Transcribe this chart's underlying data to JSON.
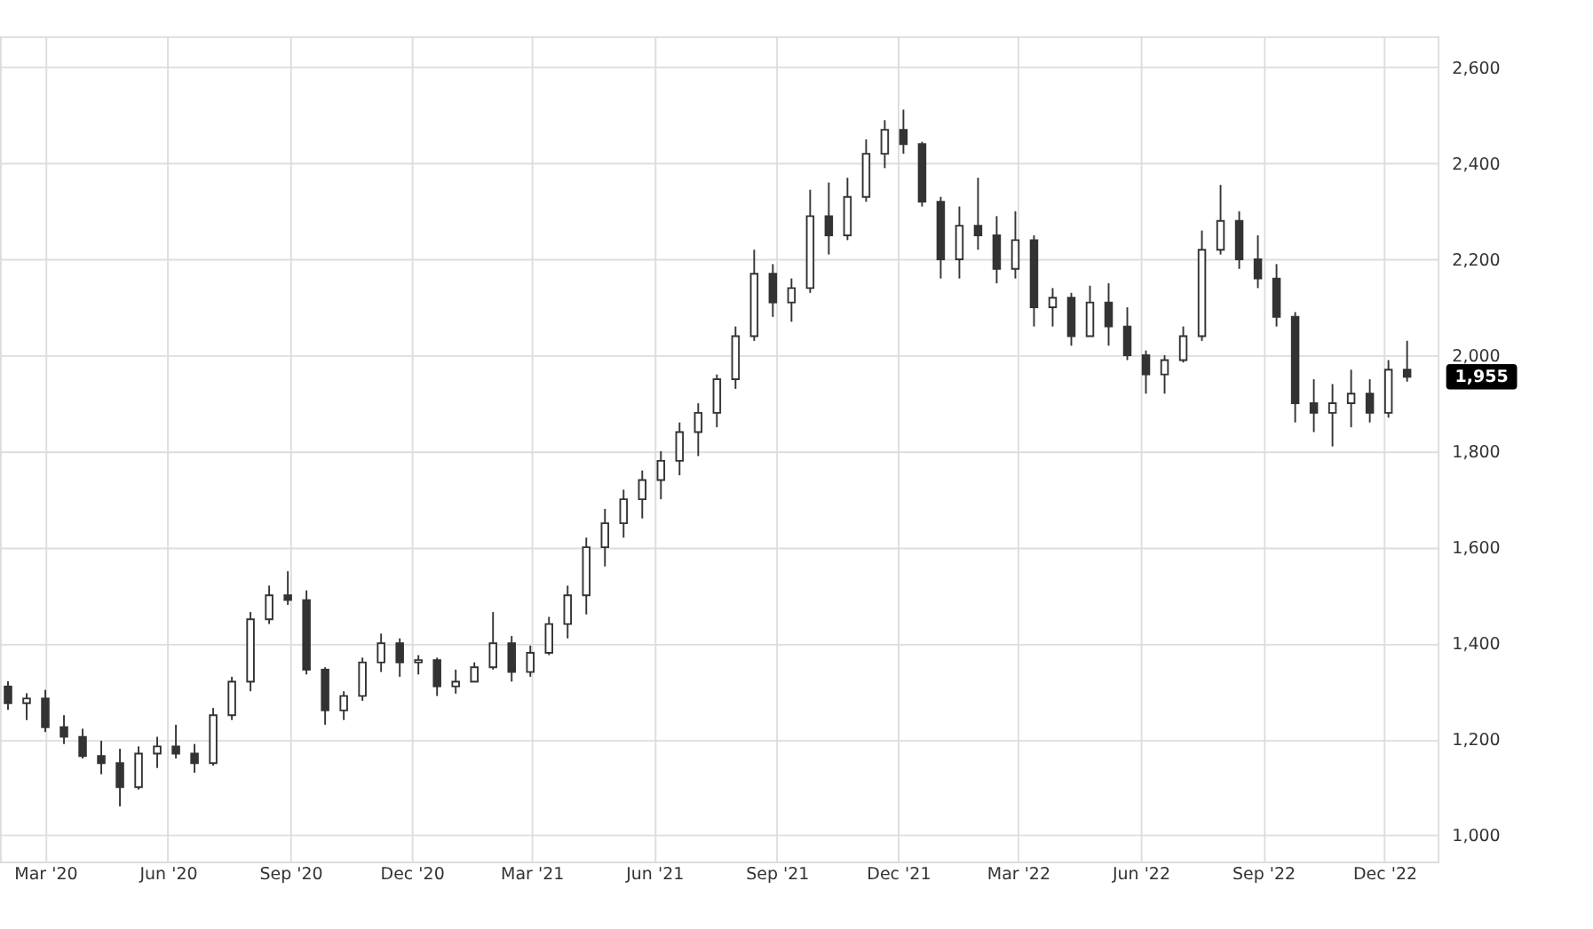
{
  "chart_data": {
    "type": "candlestick",
    "color": "#333333",
    "grid": true,
    "x": [
      "2020-02-02",
      "2020-02-16",
      "2020-03-01",
      "2020-03-15",
      "2020-03-29",
      "2020-04-12",
      "2020-04-26",
      "2020-05-10",
      "2020-05-24",
      "2020-06-07",
      "2020-06-21",
      "2020-07-05",
      "2020-07-19",
      "2020-08-02",
      "2020-08-16",
      "2020-08-30",
      "2020-09-13",
      "2020-09-27",
      "2020-10-11",
      "2020-10-25",
      "2020-11-08",
      "2020-11-22",
      "2020-12-06",
      "2020-12-20",
      "2021-01-03",
      "2021-01-17",
      "2021-01-31",
      "2021-02-14",
      "2021-02-28",
      "2021-03-14",
      "2021-03-28",
      "2021-04-11",
      "2021-04-25",
      "2021-05-09",
      "2021-05-23",
      "2021-06-06",
      "2021-06-20",
      "2021-07-04",
      "2021-07-18",
      "2021-08-01",
      "2021-08-15",
      "2021-08-29",
      "2021-09-12",
      "2021-09-26",
      "2021-10-10",
      "2021-10-24",
      "2021-11-07",
      "2021-11-21",
      "2021-12-05",
      "2021-12-19",
      "2022-01-02",
      "2022-01-16",
      "2022-01-30",
      "2022-02-13",
      "2022-02-27",
      "2022-03-13",
      "2022-03-27",
      "2022-04-10",
      "2022-04-24",
      "2022-05-08",
      "2022-05-22",
      "2022-06-05",
      "2022-06-19",
      "2022-07-03",
      "2022-07-17",
      "2022-07-31",
      "2022-08-14",
      "2022-08-28",
      "2022-09-11",
      "2022-09-25",
      "2022-10-09",
      "2022-10-23",
      "2022-11-06",
      "2022-11-20",
      "2022-12-04",
      "2022-12-18"
    ],
    "ohlc": [
      [
        1310,
        1321,
        1261,
        1275
      ],
      [
        1275,
        1296,
        1240,
        1285
      ],
      [
        1285,
        1303,
        1215,
        1225
      ],
      [
        1225,
        1250,
        1190,
        1205
      ],
      [
        1205,
        1222,
        1160,
        1165
      ],
      [
        1165,
        1197,
        1127,
        1150
      ],
      [
        1150,
        1180,
        1060,
        1100
      ],
      [
        1100,
        1185,
        1095,
        1170
      ],
      [
        1170,
        1205,
        1140,
        1185
      ],
      [
        1185,
        1230,
        1160,
        1170
      ],
      [
        1170,
        1190,
        1130,
        1150
      ],
      [
        1150,
        1265,
        1145,
        1250
      ],
      [
        1250,
        1330,
        1240,
        1320
      ],
      [
        1320,
        1465,
        1300,
        1450
      ],
      [
        1450,
        1520,
        1440,
        1500
      ],
      [
        1500,
        1550,
        1480,
        1490
      ],
      [
        1490,
        1510,
        1335,
        1345
      ],
      [
        1345,
        1350,
        1230,
        1260
      ],
      [
        1260,
        1300,
        1240,
        1290
      ],
      [
        1290,
        1370,
        1280,
        1360
      ],
      [
        1360,
        1420,
        1340,
        1400
      ],
      [
        1400,
        1410,
        1330,
        1360
      ],
      [
        1360,
        1375,
        1335,
        1365
      ],
      [
        1365,
        1370,
        1290,
        1310
      ],
      [
        1310,
        1345,
        1295,
        1320
      ],
      [
        1320,
        1360,
        1320,
        1350
      ],
      [
        1350,
        1465,
        1345,
        1400
      ],
      [
        1400,
        1415,
        1320,
        1340
      ],
      [
        1340,
        1395,
        1330,
        1380
      ],
      [
        1380,
        1455,
        1375,
        1440
      ],
      [
        1440,
        1520,
        1410,
        1500
      ],
      [
        1500,
        1620,
        1460,
        1600
      ],
      [
        1600,
        1680,
        1560,
        1650
      ],
      [
        1650,
        1720,
        1620,
        1700
      ],
      [
        1700,
        1760,
        1660,
        1740
      ],
      [
        1740,
        1800,
        1700,
        1780
      ],
      [
        1780,
        1860,
        1750,
        1840
      ],
      [
        1840,
        1900,
        1790,
        1880
      ],
      [
        1880,
        1960,
        1850,
        1950
      ],
      [
        1950,
        2060,
        1930,
        2040
      ],
      [
        2040,
        2220,
        2030,
        2170
      ],
      [
        2170,
        2190,
        2080,
        2110
      ],
      [
        2110,
        2160,
        2070,
        2140
      ],
      [
        2140,
        2345,
        2130,
        2290
      ],
      [
        2290,
        2360,
        2210,
        2250
      ],
      [
        2250,
        2370,
        2240,
        2330
      ],
      [
        2330,
        2450,
        2320,
        2420
      ],
      [
        2420,
        2490,
        2390,
        2470
      ],
      [
        2470,
        2512,
        2420,
        2440
      ],
      [
        2440,
        2445,
        2310,
        2320
      ],
      [
        2320,
        2330,
        2160,
        2200
      ],
      [
        2200,
        2310,
        2160,
        2270
      ],
      [
        2270,
        2370,
        2220,
        2250
      ],
      [
        2250,
        2290,
        2150,
        2180
      ],
      [
        2180,
        2300,
        2160,
        2240
      ],
      [
        2240,
        2250,
        2060,
        2100
      ],
      [
        2100,
        2140,
        2060,
        2120
      ],
      [
        2120,
        2130,
        2020,
        2040
      ],
      [
        2040,
        2145,
        2040,
        2110
      ],
      [
        2110,
        2150,
        2020,
        2060
      ],
      [
        2060,
        2100,
        1990,
        2000
      ],
      [
        2000,
        2010,
        1920,
        1960
      ],
      [
        1960,
        2000,
        1920,
        1990
      ],
      [
        1990,
        2060,
        1985,
        2040
      ],
      [
        2040,
        2260,
        2030,
        2220
      ],
      [
        2220,
        2355,
        2210,
        2280
      ],
      [
        2280,
        2300,
        2180,
        2200
      ],
      [
        2200,
        2250,
        2140,
        2160
      ],
      [
        2160,
        2190,
        2060,
        2080
      ],
      [
        2080,
        2090,
        1860,
        1900
      ],
      [
        1900,
        1950,
        1840,
        1880
      ],
      [
        1880,
        1940,
        1810,
        1900
      ],
      [
        1900,
        1970,
        1850,
        1920
      ],
      [
        1920,
        1950,
        1860,
        1880
      ],
      [
        1880,
        1990,
        1870,
        1970
      ],
      [
        1970,
        2030,
        1945,
        1955
      ]
    ],
    "xlim": [
      "2020-01-27",
      "2023-01-10"
    ],
    "xticks": [
      {
        "value": "2020-03-01",
        "label": "Mar '20"
      },
      {
        "value": "2020-06-01",
        "label": "Jun '20"
      },
      {
        "value": "2020-09-01",
        "label": "Sep '20"
      },
      {
        "value": "2020-12-01",
        "label": "Dec '20"
      },
      {
        "value": "2021-03-01",
        "label": "Mar '21"
      },
      {
        "value": "2021-06-01",
        "label": "Jun '21"
      },
      {
        "value": "2021-09-01",
        "label": "Sep '21"
      },
      {
        "value": "2021-12-01",
        "label": "Dec '21"
      },
      {
        "value": "2022-03-01",
        "label": "Mar '22"
      },
      {
        "value": "2022-06-01",
        "label": "Jun '22"
      },
      {
        "value": "2022-09-01",
        "label": "Sep '22"
      },
      {
        "value": "2022-12-01",
        "label": "Dec '22"
      }
    ],
    "ylim": [
      945,
      2665
    ],
    "yticks": [
      {
        "value": 1000,
        "label": "1,000"
      },
      {
        "value": 1200,
        "label": "1,200"
      },
      {
        "value": 1400,
        "label": "1,400"
      },
      {
        "value": 1600,
        "label": "1,600"
      },
      {
        "value": 1800,
        "label": "1,800"
      },
      {
        "value": 2000,
        "label": "2,000"
      },
      {
        "value": 2200,
        "label": "2,200"
      },
      {
        "value": 2400,
        "label": "2,400"
      },
      {
        "value": 2600,
        "label": "2,600"
      }
    ],
    "annotations": [
      "1,955"
    ]
  }
}
